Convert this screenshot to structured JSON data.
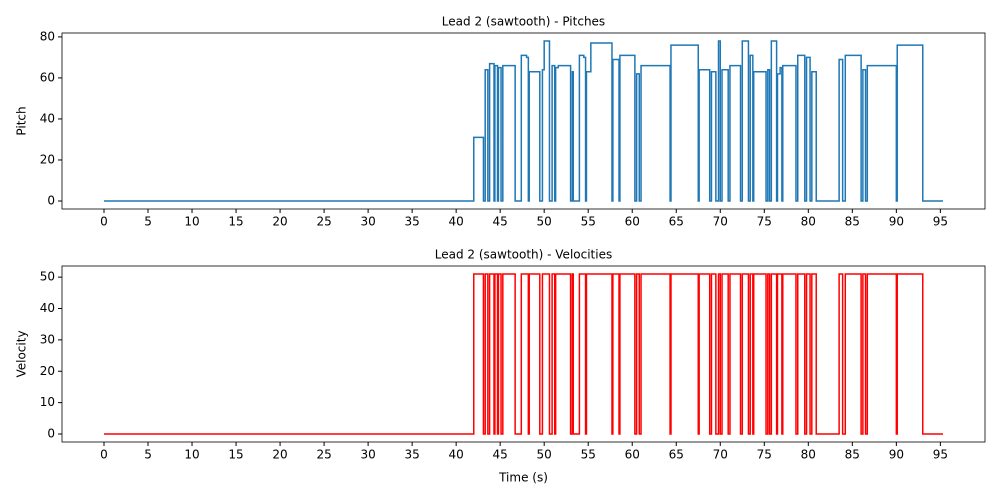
{
  "chart_data": [
    {
      "type": "line",
      "step": "post",
      "title": "Lead 2 (sawtooth) - Pitches",
      "y_label": "Pitch",
      "color": "#1f77b4",
      "x": [
        0,
        42,
        43.1,
        43.3,
        43.6,
        43.8,
        44.3,
        44.4,
        44.7,
        44.8,
        45.1,
        45.3,
        46.7,
        47.4,
        48.0,
        48.2,
        48.3,
        49.5,
        49.8,
        50,
        50.6,
        50.9,
        51.2,
        51.3,
        51.6,
        53,
        53.2,
        53.3,
        54,
        54.5,
        54.7,
        54.8,
        55.3,
        57.7,
        57.8,
        58.5,
        58.6,
        60.3,
        60.5,
        60.8,
        61,
        64.3,
        64.4,
        67.5,
        67.6,
        68.8,
        69,
        69.5,
        69.8,
        70,
        70.2,
        70.9,
        71.1,
        72.3,
        72.5,
        73.2,
        73.4,
        73.7,
        73.8,
        75.2,
        75.4,
        75.6,
        75.8,
        76.4,
        76.5,
        76.8,
        77,
        77.1,
        78.6,
        78.8,
        79.6,
        79.8,
        80.2,
        80.4,
        80.9,
        83.5,
        83.9,
        84.2,
        86,
        86.2,
        86.5,
        86.7,
        90,
        90.1,
        93,
        95.3
      ],
      "values": [
        0,
        31,
        0,
        64,
        0,
        67,
        0,
        66,
        0,
        65,
        0,
        66,
        0,
        71,
        70,
        0,
        63,
        0,
        64,
        78,
        0,
        66,
        0,
        65,
        66,
        0,
        63,
        0,
        71,
        70,
        0,
        63,
        77,
        0,
        69,
        0,
        71,
        0,
        62,
        0,
        66,
        0,
        76,
        0,
        64,
        0,
        63,
        0,
        78,
        0,
        64,
        0,
        66,
        0,
        78,
        0,
        71,
        0,
        63,
        0,
        64,
        0,
        78,
        0,
        62,
        65,
        0,
        66,
        0,
        71,
        0,
        70,
        0,
        63,
        0,
        69,
        0,
        71,
        0,
        64,
        0,
        66,
        0,
        76,
        0,
        0
      ],
      "xlim": [
        -4.77,
        100.07
      ],
      "ylim": [
        -3.9,
        81.9
      ],
      "xticks": [
        0,
        5,
        10,
        15,
        20,
        25,
        30,
        35,
        40,
        45,
        50,
        55,
        60,
        65,
        70,
        75,
        80,
        85,
        90,
        95
      ],
      "yticks": [
        0,
        20,
        40,
        60,
        80
      ]
    },
    {
      "type": "line",
      "step": "post",
      "title": "Lead 2 (sawtooth) - Velocities",
      "x_label": "Time (s)",
      "y_label": "Velocity",
      "color": "#ff0000",
      "x": [
        0,
        42,
        43.1,
        43.3,
        43.6,
        43.8,
        44.3,
        44.4,
        44.7,
        44.8,
        45.1,
        45.3,
        46.7,
        47.4,
        48.0,
        48.2,
        48.3,
        49.5,
        49.8,
        50,
        50.6,
        50.9,
        51.2,
        51.3,
        51.6,
        53,
        53.2,
        53.3,
        54,
        54.5,
        54.7,
        54.8,
        55.3,
        57.7,
        57.8,
        58.5,
        58.6,
        60.3,
        60.5,
        60.8,
        61,
        64.3,
        64.4,
        67.5,
        67.6,
        68.8,
        69,
        69.5,
        69.8,
        70,
        70.2,
        70.9,
        71.1,
        72.3,
        72.5,
        73.2,
        73.4,
        73.7,
        73.8,
        75.2,
        75.4,
        75.6,
        75.8,
        76.4,
        76.5,
        76.8,
        77,
        77.1,
        78.6,
        78.8,
        79.6,
        79.8,
        80.2,
        80.4,
        80.9,
        83.5,
        83.9,
        84.2,
        86,
        86.2,
        86.5,
        86.7,
        90,
        90.1,
        93,
        95.3
      ],
      "values": [
        0,
        51,
        0,
        51,
        0,
        51,
        0,
        51,
        0,
        51,
        0,
        51,
        0,
        51,
        51,
        0,
        51,
        0,
        51,
        51,
        0,
        51,
        0,
        51,
        51,
        0,
        51,
        0,
        51,
        51,
        0,
        51,
        51,
        0,
        51,
        0,
        51,
        0,
        51,
        0,
        51,
        0,
        51,
        0,
        51,
        0,
        51,
        0,
        51,
        0,
        51,
        0,
        51,
        0,
        51,
        0,
        51,
        0,
        51,
        0,
        51,
        0,
        51,
        0,
        51,
        51,
        0,
        51,
        0,
        51,
        0,
        51,
        0,
        51,
        0,
        51,
        0,
        51,
        0,
        51,
        0,
        51,
        0,
        51,
        0,
        0
      ],
      "xlim": [
        -4.77,
        100.07
      ],
      "ylim": [
        -2.55,
        53.55
      ],
      "xticks": [
        0,
        5,
        10,
        15,
        20,
        25,
        30,
        35,
        40,
        45,
        50,
        55,
        60,
        65,
        70,
        75,
        80,
        85,
        90,
        95
      ],
      "yticks": [
        0,
        10,
        20,
        30,
        40,
        50
      ]
    }
  ]
}
